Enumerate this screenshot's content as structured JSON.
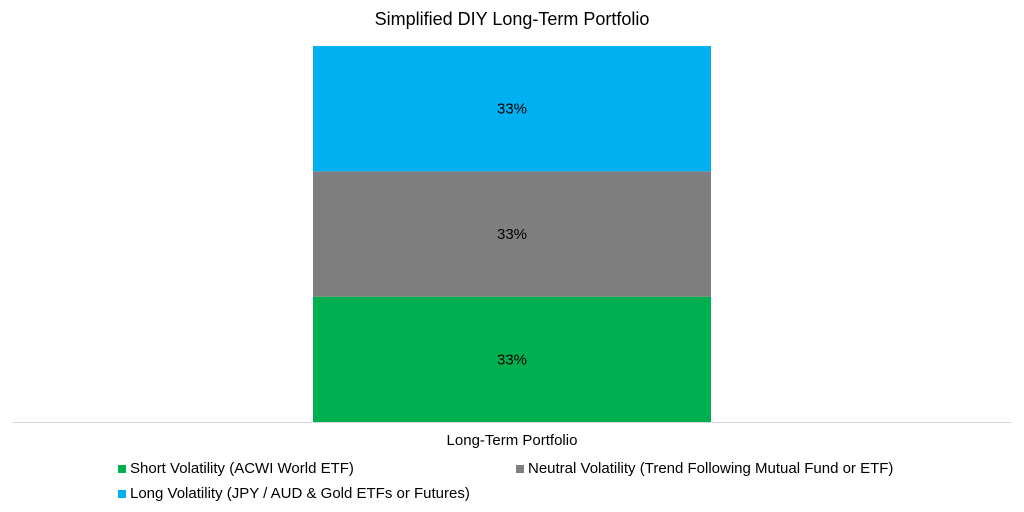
{
  "chart_data": {
    "type": "bar",
    "stacked": true,
    "title": "Simplified DIY Long-Term Portfolio",
    "categories": [
      "Long-Term Portfolio"
    ],
    "series": [
      {
        "name": "Short Volatility (ACWI World ETF)",
        "values": [
          33.33
        ],
        "label": "33%",
        "color": "#00B050"
      },
      {
        "name": "Neutral Volatility (Trend Following Mutual Fund or ETF)",
        "values": [
          33.33
        ],
        "label": "33%",
        "color": "#7F7F7F"
      },
      {
        "name": "Long Volatility (JPY / AUD & Gold ETFs or Futures)",
        "values": [
          33.33
        ],
        "label": "33%",
        "color": "#00B0F0"
      }
    ],
    "ylim": [
      0,
      100
    ],
    "yaxis_visible": false,
    "grid": false,
    "legend": "bottom"
  }
}
